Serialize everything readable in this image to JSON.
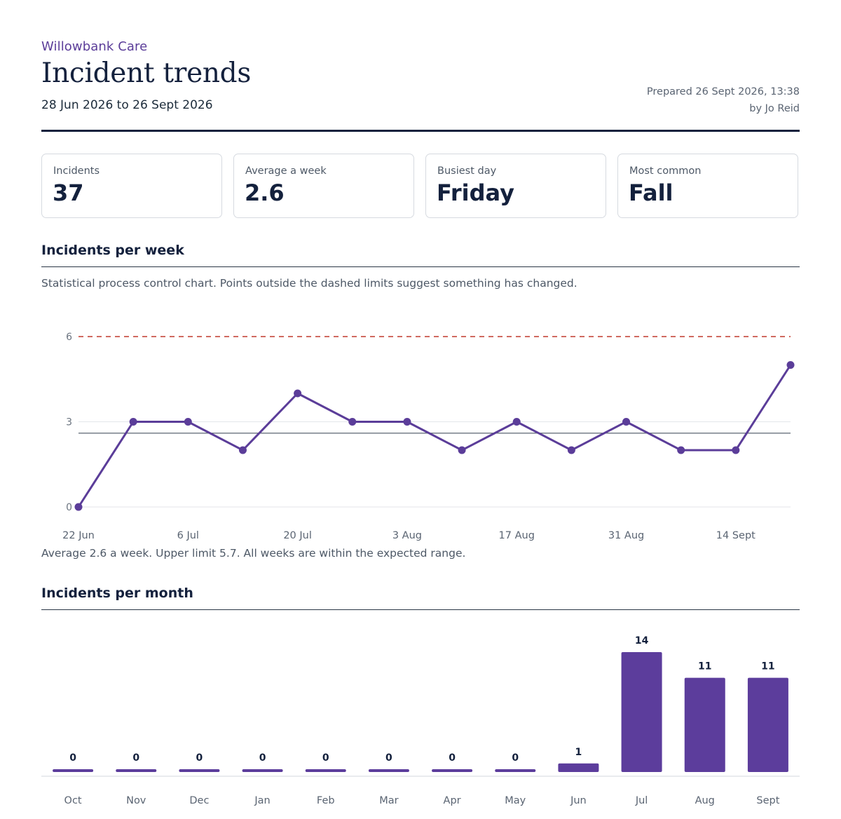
{
  "header": {
    "organisation": "Willowbank Care",
    "title": "Incident trends",
    "date_range": "28 Jun 2026 to 26 Sept 2026",
    "prepared_line": "Prepared 26 Sept 2026, 13:38",
    "author_line": "by Jo Reid"
  },
  "cards": [
    {
      "label": "Incidents",
      "value": "37"
    },
    {
      "label": "Average a week",
      "value": "2.6"
    },
    {
      "label": "Busiest day",
      "value": "Friday"
    },
    {
      "label": "Most common",
      "value": "Fall"
    }
  ],
  "weekly_section": {
    "title": "Incidents per week",
    "description": "Statistical process control chart. Points outside the dashed limits suggest something has changed.",
    "summary": "Average 2.6 a week. Upper limit 5.7. All weeks are within the expected range."
  },
  "monthly_section": {
    "title": "Incidents per month"
  },
  "colors": {
    "accent": "#5b3d99",
    "bar": "#5c3d9c",
    "upper_limit": "#c0392b",
    "mean_line": "#6b7480",
    "heading": "#14213d"
  },
  "chart_data": [
    {
      "type": "line",
      "subtype": "control-chart",
      "x": [
        "22 Jun",
        "29 Jun",
        "6 Jul",
        "13 Jul",
        "20 Jul",
        "27 Jul",
        "3 Aug",
        "10 Aug",
        "17 Aug",
        "24 Aug",
        "31 Aug",
        "7 Sept",
        "14 Sept",
        "21 Sept"
      ],
      "x_tick_labels": [
        "22 Jun",
        "6 Jul",
        "20 Jul",
        "3 Aug",
        "17 Aug",
        "31 Aug",
        "14 Sept"
      ],
      "values": [
        0,
        3,
        3,
        2,
        4,
        3,
        3,
        2,
        3,
        2,
        3,
        2,
        2,
        5
      ],
      "mean": 2.6,
      "upper_limit": 5.7,
      "y_ticks": [
        0,
        3,
        6
      ],
      "ylim": [
        0,
        6
      ],
      "grid": true
    },
    {
      "type": "bar",
      "categories": [
        "Oct",
        "Nov",
        "Dec",
        "Jan",
        "Feb",
        "Mar",
        "Apr",
        "May",
        "Jun",
        "Jul",
        "Aug",
        "Sept"
      ],
      "values": [
        0,
        0,
        0,
        0,
        0,
        0,
        0,
        0,
        1,
        14,
        11,
        11
      ],
      "data_labels": true,
      "ylim": [
        0,
        14
      ]
    }
  ]
}
